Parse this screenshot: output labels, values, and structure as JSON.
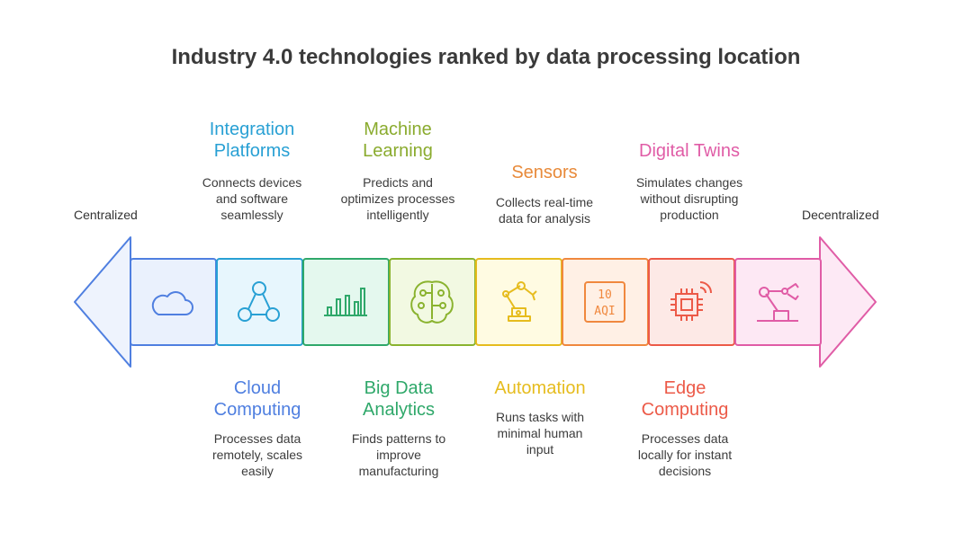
{
  "title": "Industry 4.0 technologies ranked by data processing location",
  "axis": {
    "left": "Centralized",
    "right": "Decentralized"
  },
  "items": [
    {
      "name": "Cloud Computing",
      "line1": "Cloud",
      "line2": "Computing",
      "position": "bottom",
      "description": [
        "Processes data",
        "remotely, scales",
        "easily"
      ],
      "color": "#4f7fe0",
      "fill": "#eaf1fd",
      "icon": "cloud-icon"
    },
    {
      "name": "Integration Platforms",
      "line1": "Integration",
      "line2": "Platforms",
      "position": "top",
      "description": [
        "Connects devices",
        "and software",
        "seamlessly"
      ],
      "color": "#28a0d4",
      "fill": "#e7f6fd",
      "icon": "network-icon"
    },
    {
      "name": "Machine Learning",
      "line1": "Machine",
      "line2": "Learning",
      "position": "top",
      "description": [
        "Predicts and",
        "optimizes processes",
        "intelligently"
      ],
      "color": "#2fa86a",
      "fill": "#e4f8ee",
      "icon": "bar-chart-icon",
      "head_color": "#8aab2e"
    },
    {
      "name": "Big Data Analytics",
      "line1": "Big Data",
      "line2": "Analytics",
      "position": "bottom",
      "description": [
        "Finds patterns to",
        "improve",
        "manufacturing"
      ],
      "color": "#8ab32f",
      "fill": "#f2f9e2",
      "icon": "brain-icon",
      "head_color": "#2fa86a"
    },
    {
      "name": "Sensors",
      "line1": "Sensors",
      "line2": "",
      "position": "top",
      "description": [
        "Collects real-time",
        "data for analysis"
      ],
      "color": "#e6bc1e",
      "fill": "#fffbe2",
      "icon": "robot-arm-icon",
      "head_color": "#e88a3a"
    },
    {
      "name": "Automation",
      "line1": "Automation",
      "line2": "",
      "position": "bottom",
      "description": [
        "Runs tasks with",
        "minimal human",
        "input"
      ],
      "color": "#f0883e",
      "fill": "#fff0e5",
      "icon": "aqi-sensor-icon",
      "head_color": "#e6bc1e"
    },
    {
      "name": "Edge Computing",
      "line1": "Edge",
      "line2": "Computing",
      "position": "bottom",
      "description": [
        "Processes data",
        "locally for instant",
        "decisions"
      ],
      "color": "#ec5a48",
      "fill": "#fde9e6",
      "icon": "chip-icon"
    },
    {
      "name": "Digital Twins",
      "line1": "Digital Twins",
      "line2": "",
      "position": "top",
      "description": [
        "Simulates changes",
        "without disrupting",
        "production"
      ],
      "color": "#e05ca6",
      "fill": "#fde8f4",
      "icon": "robot-gripper-icon"
    }
  ]
}
